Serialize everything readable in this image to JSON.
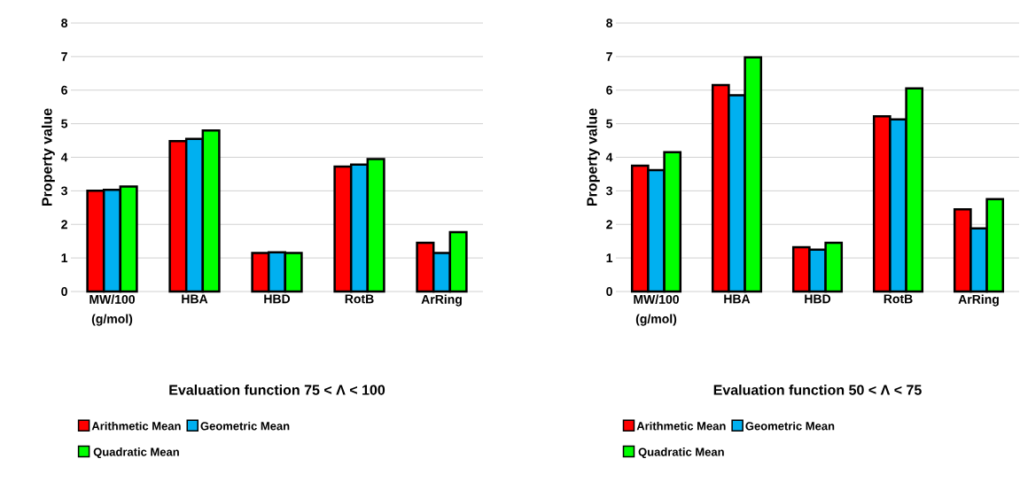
{
  "chart_data": [
    {
      "type": "bar",
      "xlabel": "Evaluation function 75 < Λ < 100",
      "ylabel": "Property value",
      "categories": [
        "MW/100 (g/mol)",
        "HBA",
        "HBD",
        "RotB",
        "ArRing"
      ],
      "ylim": [
        0,
        8
      ],
      "yticks": [
        0,
        1,
        2,
        3,
        4,
        5,
        6,
        7,
        8
      ],
      "grid": "y",
      "legend": "bottom",
      "series": [
        {
          "name": "Arithmetic Mean",
          "color": "#ff0000",
          "values": [
            3.0,
            4.48,
            1.15,
            3.72,
            1.45
          ]
        },
        {
          "name": "Geometric Mean",
          "color": "#00b0f0",
          "values": [
            3.03,
            4.55,
            1.17,
            3.78,
            1.15
          ]
        },
        {
          "name": "Quadratic Mean",
          "color": "#00ff00",
          "values": [
            3.13,
            4.8,
            1.15,
            3.95,
            1.77
          ]
        }
      ]
    },
    {
      "type": "bar",
      "xlabel": "Evaluation function 50 < Λ < 75",
      "ylabel": "Property value",
      "categories": [
        "MW/100 (g/mol)",
        "HBA",
        "HBD",
        "RotB",
        "ArRing"
      ],
      "ylim": [
        0,
        8
      ],
      "yticks": [
        0,
        1,
        2,
        3,
        4,
        5,
        6,
        7,
        8
      ],
      "grid": "y",
      "legend": "bottom",
      "series": [
        {
          "name": "Arithmetic Mean",
          "color": "#ff0000",
          "values": [
            3.75,
            6.15,
            1.32,
            5.22,
            2.45
          ]
        },
        {
          "name": "Geometric Mean",
          "color": "#00b0f0",
          "values": [
            3.62,
            5.85,
            1.25,
            5.13,
            1.88
          ]
        },
        {
          "name": "Quadratic Mean",
          "color": "#00ff00",
          "values": [
            4.15,
            6.98,
            1.45,
            6.05,
            2.75
          ]
        }
      ]
    }
  ]
}
